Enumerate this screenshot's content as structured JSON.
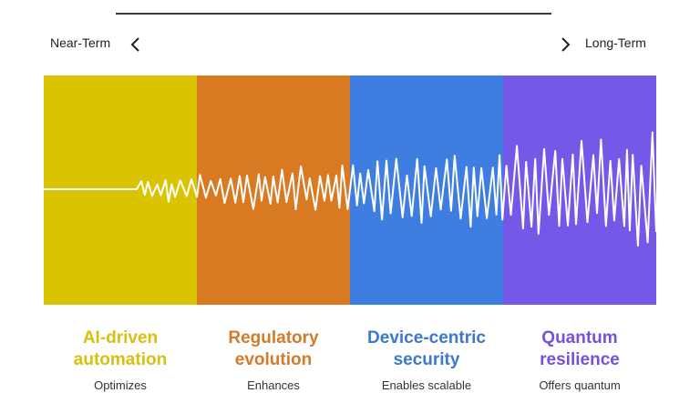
{
  "timeline": {
    "start_label": "Near-Term",
    "end_label": "Long-Term",
    "prev_icon": "chevron-left-icon",
    "next_icon": "chevron-right-icon"
  },
  "stages": [
    {
      "title_line1": "AI-driven",
      "title_line2": "automation",
      "color": "#DAC300",
      "text_color": "#D8BF10",
      "desc": "Optimizes"
    },
    {
      "title_line1": "Regulatory",
      "title_line2": "evolution",
      "color": "#D97A22",
      "text_color": "#D27B2A",
      "desc": "Enhances"
    },
    {
      "title_line1": "Device-centric",
      "title_line2": "security",
      "color": "#3E7EE0",
      "text_color": "#3C78D0",
      "desc": "Enables scalable"
    },
    {
      "title_line1": "Quantum",
      "title_line2": "resilience",
      "color": "#7459E8",
      "text_color": "#7651DC",
      "desc": "Offers quantum"
    }
  ],
  "waveform": {
    "color": "#ffffff"
  }
}
